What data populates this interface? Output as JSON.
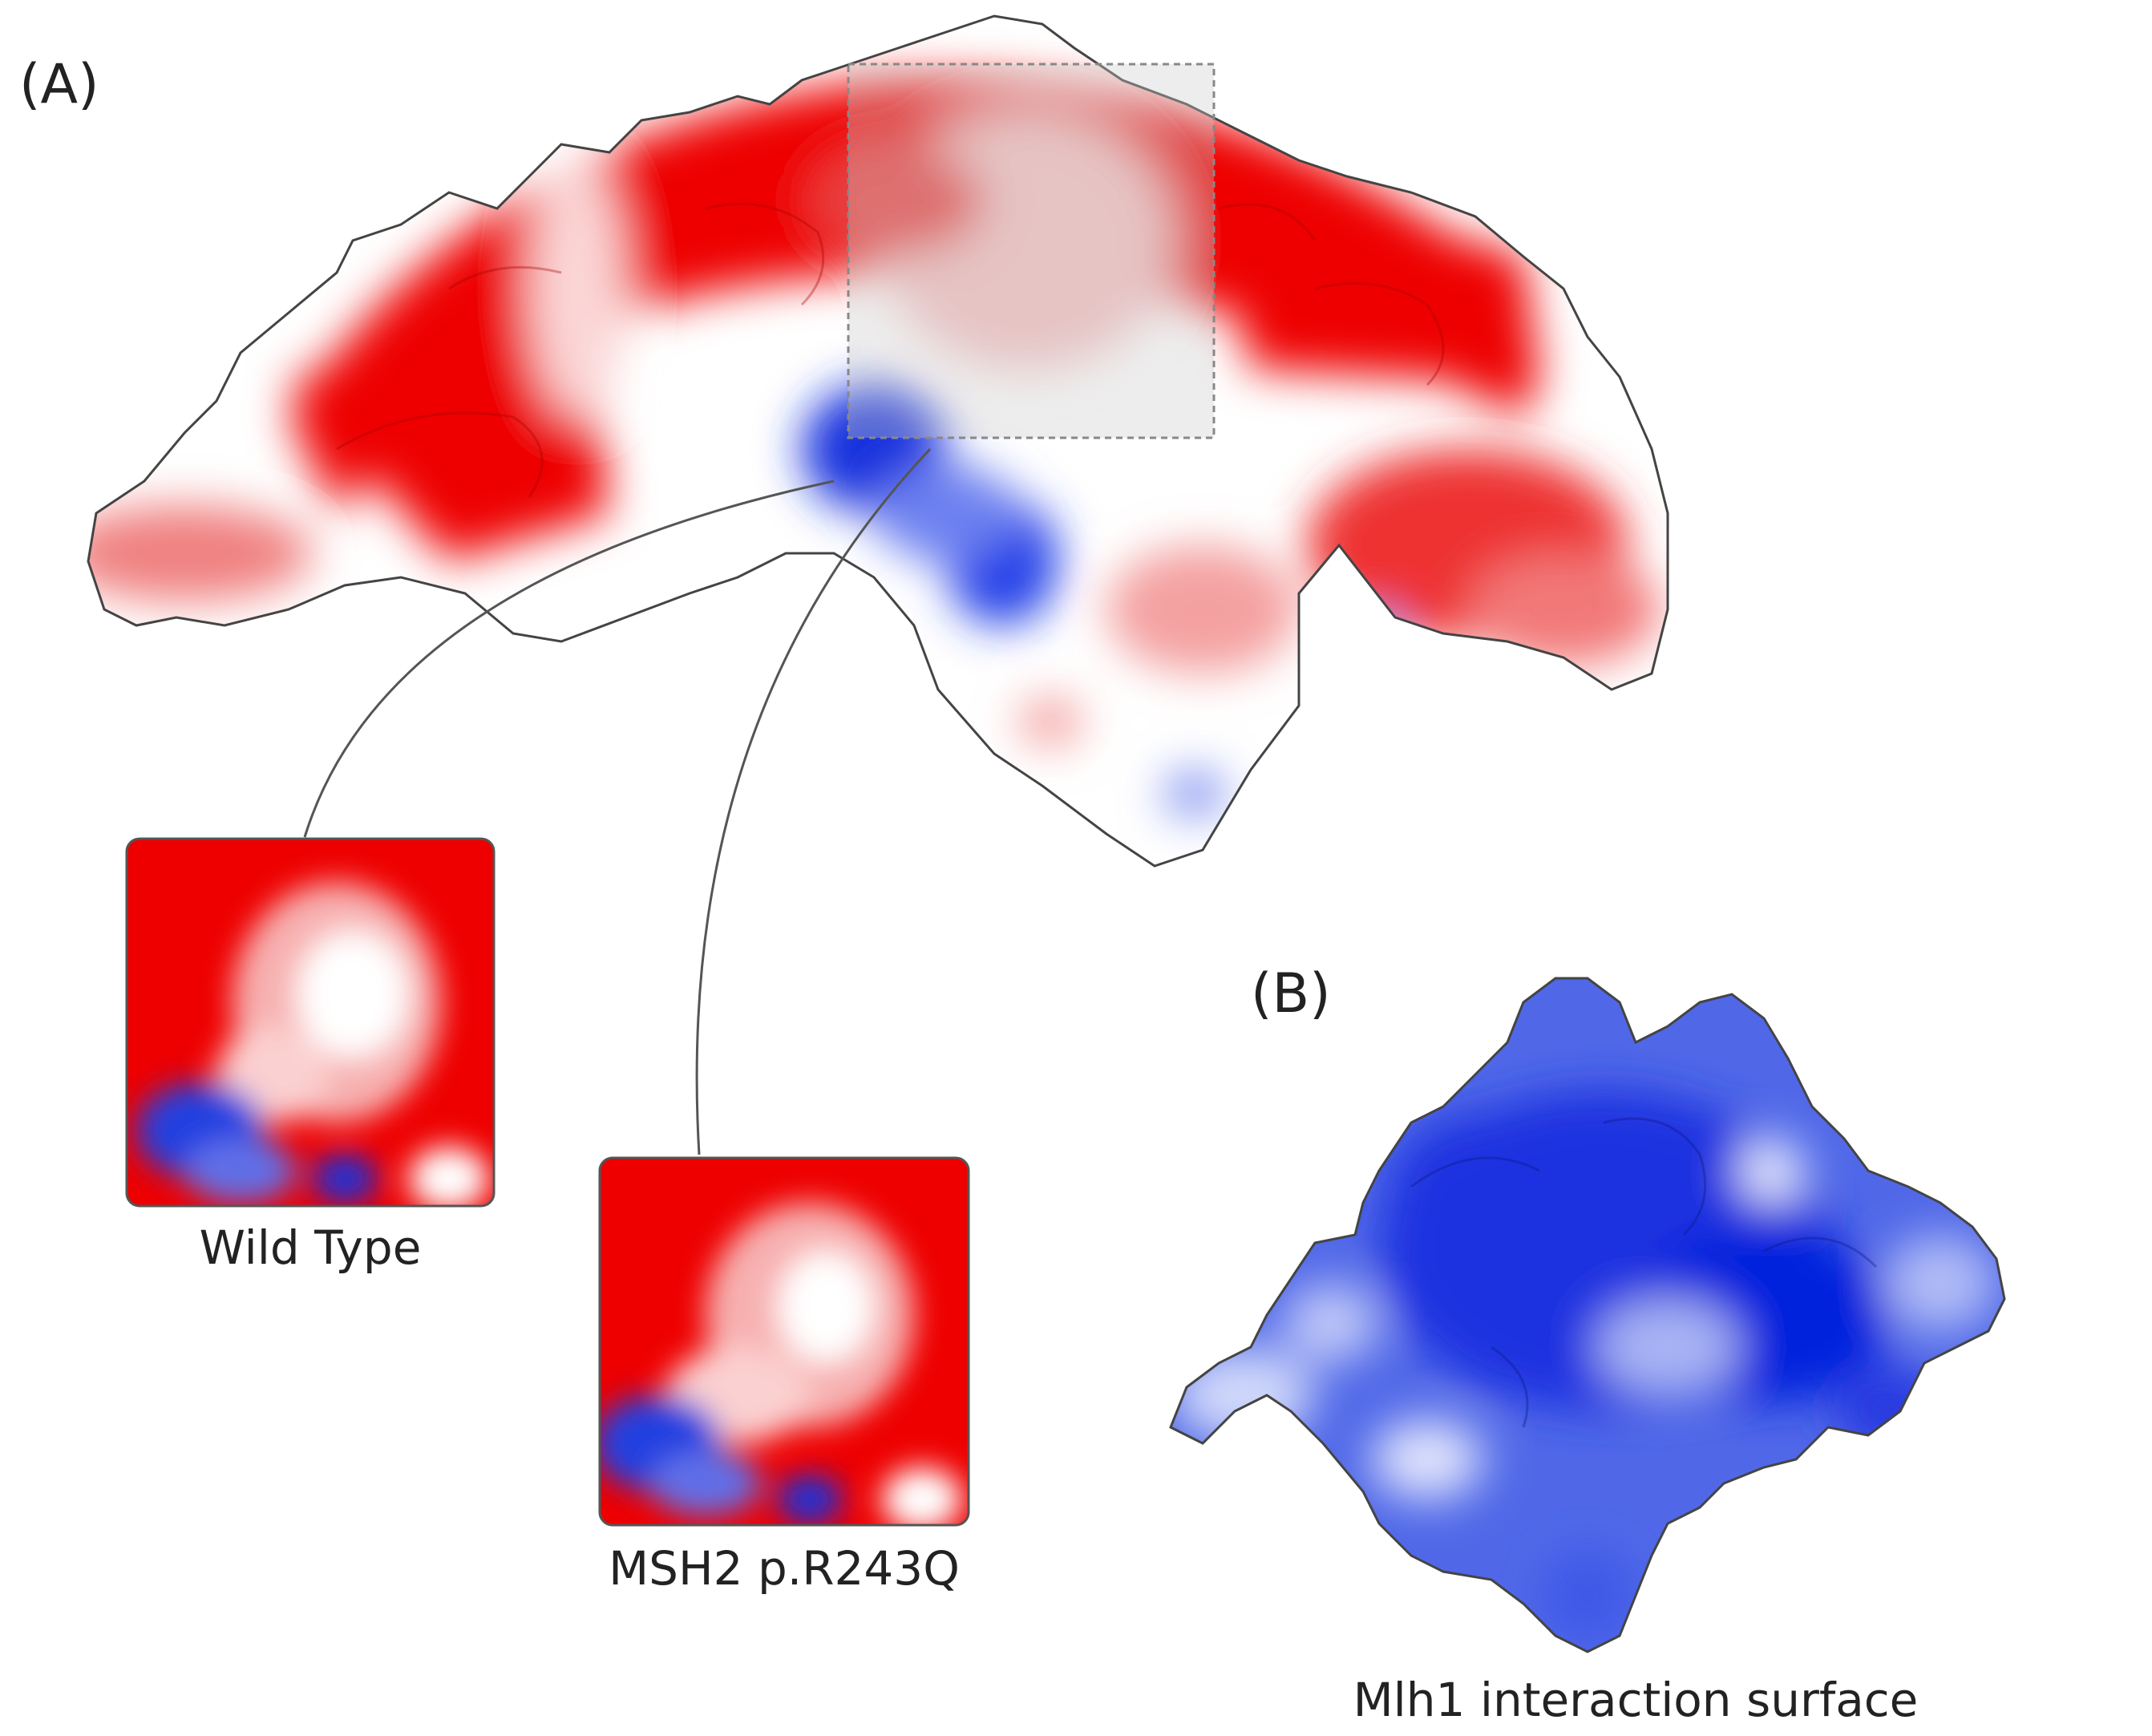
{
  "panels": {
    "a": {
      "label": "(A)"
    },
    "b": {
      "label": "(B)",
      "caption": "Mlh1 interaction surface"
    }
  },
  "insets": {
    "wild_type": {
      "caption": "Wild Type"
    },
    "mutant": {
      "caption": "MSH2 p.R243Q"
    }
  },
  "colors": {
    "negative": "#ee0000",
    "neutral": "#ffffff",
    "positive": "#0022dd",
    "zoom_box": "#cccccc"
  }
}
